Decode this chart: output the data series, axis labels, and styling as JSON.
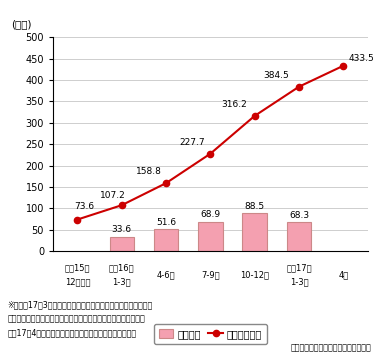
{
  "bar_x_indices": [
    1,
    2,
    3,
    4,
    5
  ],
  "bar_values": [
    33.6,
    51.6,
    68.9,
    88.5,
    68.3
  ],
  "line_values": [
    73.6,
    107.2,
    158.8,
    227.7,
    316.2,
    384.5,
    433.5
  ],
  "bar_color": "#f4a0b0",
  "bar_edge_color": "#cc8888",
  "line_color": "#cc0000",
  "ylabel": "(万台)",
  "ylim": [
    0,
    500
  ],
  "yticks": [
    0,
    50,
    100,
    150,
    200,
    250,
    300,
    350,
    400,
    450,
    500
  ],
  "line_labels": [
    73.6,
    107.2,
    158.8,
    227.7,
    316.2,
    384.5,
    433.5
  ],
  "legend_bar_label": "出荷台数",
  "legend_line_label": "累計出荷台数",
  "note1": "※　平成17年3月までの出荷台数は、地上デジタルテレビ、チュ",
  "note2": "　　ーナ、ケーブルテレビ用セットトップボックスの合計。平成",
  "note3": "　　17年4月からはデジタルレコーダーの出荷台数を含む",
  "source": "電子情報技術産業協会資料により作成",
  "bg_color": "#ffffff",
  "grid_color": "#bbbbbb",
  "xtick_top": [
    "平成15年",
    "年成16年",
    "",
    "",
    "",
    "平成17年",
    ""
  ],
  "xtick_bot": [
    "12月以前",
    "1-3月",
    "4-6月",
    "7-9月",
    "10-12月",
    "1-3月",
    "4月"
  ]
}
